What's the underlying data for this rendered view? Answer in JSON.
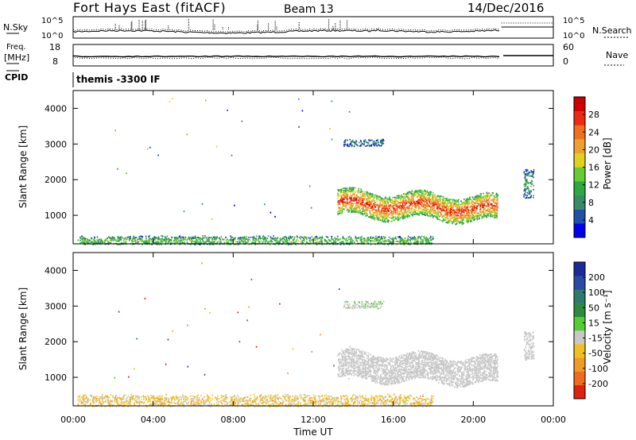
{
  "header": {
    "site": "Fort Hays East (fitACF)",
    "beam": "Beam 13",
    "date": "14/Dec/2016"
  },
  "strips": {
    "nsky": {
      "label": "N.Sky",
      "ticks": [
        "10^5",
        "10^0"
      ]
    },
    "nsearch": {
      "label": "N.Search",
      "ticks": [
        "10^5",
        "10^0"
      ]
    },
    "freq": {
      "label_line1": "Freq.",
      "label_line2": "[MHz]",
      "ticks": [
        "18",
        "8"
      ]
    },
    "nave": {
      "label": "Nave",
      "ticks": [
        "60",
        "0"
      ]
    },
    "cpid": {
      "label": "CPID",
      "value": "themis -3300 IF"
    }
  },
  "colorbars": {
    "power": {
      "label": "Power [dB]",
      "colors": [
        "#0000ee",
        "#2050a8",
        "#3a8a6a",
        "#2ea840",
        "#66cc33",
        "#e0d020",
        "#f0a030",
        "#f07020",
        "#ee2a14",
        "#cc0000"
      ],
      "ticks": [
        "4",
        "8",
        "12",
        "16",
        "20",
        "24",
        "28"
      ]
    },
    "velocity": {
      "label": "Velocity [m s⁻¹]",
      "colors": [
        "#1a2a9a",
        "#2a4aa6",
        "#2f7a6a",
        "#2e8a3e",
        "#55cc33",
        "#c8c8c8",
        "#f0c020",
        "#f09a28",
        "#f06a20",
        "#e02010"
      ],
      "ticks": [
        "200",
        "100",
        "50",
        "15",
        "-15",
        "-50",
        "-100",
        "-200"
      ]
    }
  },
  "chart_data": [
    {
      "type": "heatmap",
      "panel": "power",
      "ylabel": "Slant Range [km]",
      "xlabel": "",
      "xlim": [
        0,
        24
      ],
      "ylim": [
        200,
        4500
      ],
      "y_ticks": [
        1000,
        2000,
        3000,
        4000
      ],
      "x_tick_labels": [
        "00:00",
        "04:00",
        "08:00",
        "12:00",
        "16:00",
        "20:00",
        "00:00"
      ],
      "colorbar_label": "Power [dB]",
      "regions": [
        {
          "t_start": 13.2,
          "t_end": 21.2,
          "range_center": 1350,
          "range_halfwidth": 350,
          "value_db": 20
        },
        {
          "t_start": 0.2,
          "t_end": 18.0,
          "range_center": 300,
          "range_halfwidth": 150,
          "value_db": 10
        },
        {
          "t_start": 13.5,
          "t_end": 15.5,
          "range_center": 3050,
          "range_halfwidth": 100,
          "value_db": 6
        },
        {
          "t_start": 22.5,
          "t_end": 23.0,
          "range_center": 1900,
          "range_halfwidth": 400,
          "value_db": 8
        }
      ]
    },
    {
      "type": "heatmap",
      "panel": "velocity",
      "ylabel": "Slant Range [km]",
      "xlabel": "Time UT",
      "xlim": [
        0,
        24
      ],
      "ylim": [
        200,
        4500
      ],
      "y_ticks": [
        1000,
        2000,
        3000,
        4000
      ],
      "x_tick_labels": [
        "00:00",
        "04:00",
        "08:00",
        "12:00",
        "16:00",
        "20:00",
        "00:00"
      ],
      "colorbar_label": "Velocity [m s⁻¹]",
      "regions": [
        {
          "t_start": 13.2,
          "t_end": 21.2,
          "range_center": 1350,
          "range_halfwidth": 380,
          "value_ms": 0
        },
        {
          "t_start": 0.2,
          "t_end": 18.0,
          "range_center": 350,
          "range_halfwidth": 200,
          "value_ms": -40
        },
        {
          "t_start": 13.5,
          "t_end": 15.5,
          "range_center": 3050,
          "range_halfwidth": 100,
          "value_ms": 10
        },
        {
          "t_start": 22.5,
          "t_end": 23.0,
          "range_center": 1900,
          "range_halfwidth": 400,
          "value_ms": 0
        }
      ]
    }
  ],
  "axes": {
    "ylabel": "Slant Range [km]",
    "xlabel": "Time UT"
  }
}
